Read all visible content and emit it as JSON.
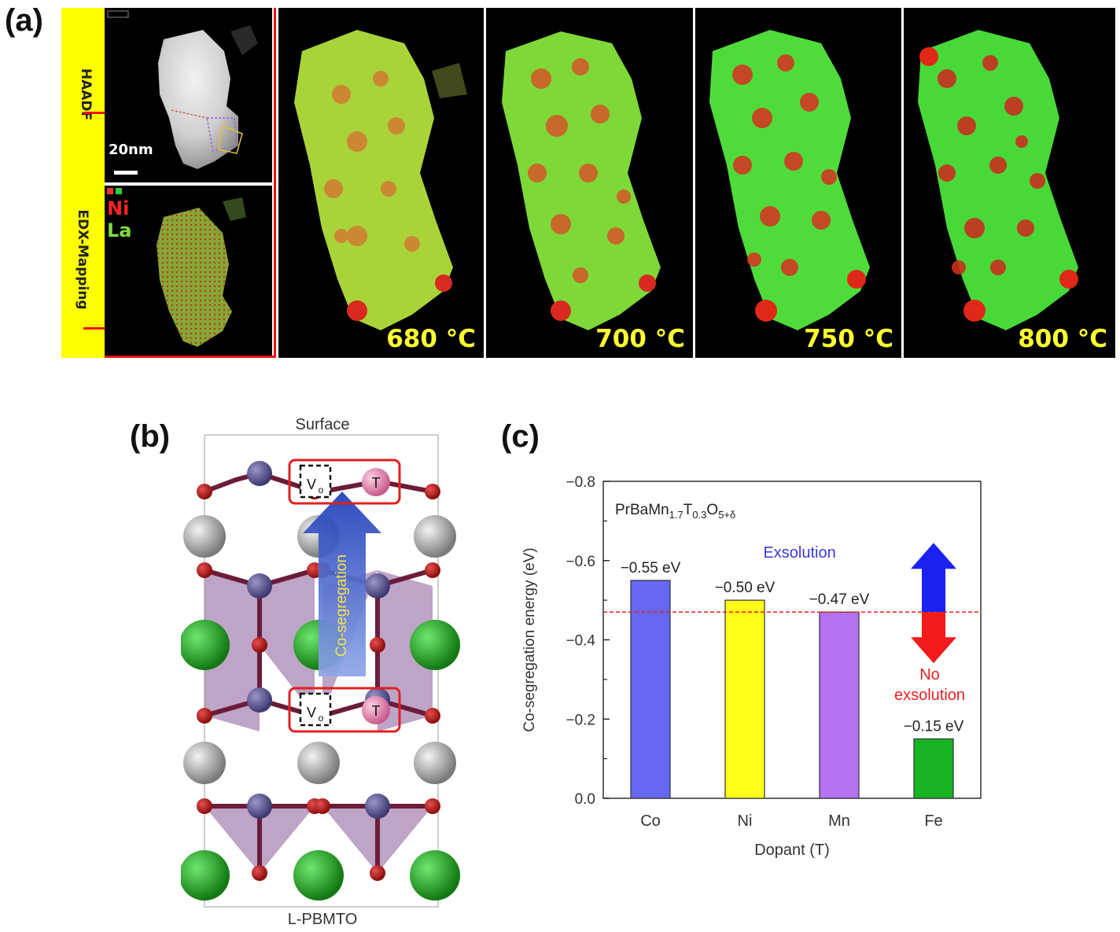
{
  "panel_labels": {
    "a": "(a)",
    "b": "(b)",
    "c": "(c)"
  },
  "panel_a": {
    "haadf_label": "HAADF",
    "edx_label": "EDX-Mapping",
    "scale_label": "20nm",
    "legend": {
      "ni": "Ni",
      "la": "La"
    },
    "temperatures": [
      "680 °C",
      "700 °C",
      "750 °C",
      "800 °C"
    ],
    "colors": {
      "la_green": "#5bd83a",
      "ni_red": "#e03a2a",
      "label_bg": "#ffff00"
    }
  },
  "panel_b": {
    "top_label": "Surface",
    "bottom_label": "L-PBMTO",
    "arrow_label": "Co-segregation",
    "vacancy_label": "V",
    "vacancy_sub": "o",
    "dopant_label": "T",
    "colors": {
      "oxygen": "#b01515",
      "mn": "#55508e",
      "ba": "#9a9a9a",
      "pr": "#1ca01c",
      "polyhedra": "#8a5a98",
      "arrow": "#2044b8"
    }
  },
  "chart_data": {
    "type": "bar",
    "annotation_formula": {
      "main": "PrBaMn",
      "sub1": "1.7",
      "mid1": "T",
      "sub2": "0.3",
      "mid2": "O",
      "sub3": "5+δ"
    },
    "categories": [
      "Co",
      "Ni",
      "Mn",
      "Fe"
    ],
    "values": [
      -0.55,
      -0.5,
      -0.47,
      -0.15
    ],
    "value_labels": [
      "−0.55 eV",
      "−0.50 eV",
      "−0.47 eV",
      "−0.15 eV"
    ],
    "bar_colors": [
      "#6767f2",
      "#ffff19",
      "#b474f2",
      "#19b424"
    ],
    "xlabel": "Dopant (T)",
    "ylabel": "Co-segregation energy (eV)",
    "ylim": [
      0.0,
      -0.8
    ],
    "yticks": [
      0.0,
      -0.2,
      -0.4,
      -0.6,
      -0.8
    ],
    "ytick_labels": [
      "0.0",
      "−0.2",
      "−0.4",
      "−0.6",
      "−0.8"
    ],
    "threshold": -0.47,
    "threshold_color": "#e02020",
    "exsolution_label": "Exsolution",
    "no_exsolution_label": [
      "No",
      "exsolution"
    ],
    "exsolution_color": "#3b3bd8",
    "no_exsolution_color": "#e82020"
  }
}
